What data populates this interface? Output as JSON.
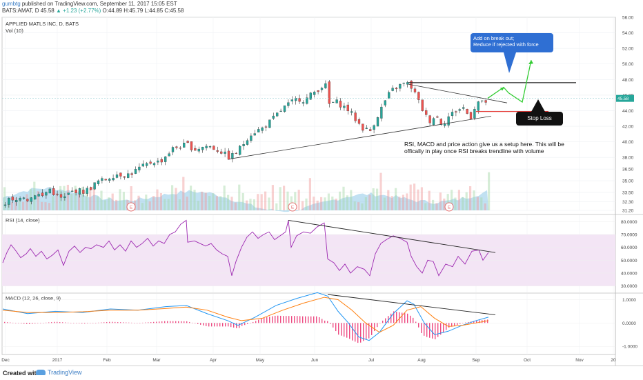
{
  "header": {
    "author": "gumbtg",
    "published": " published on TradingView.com, September 11, 2017 15:05 EST",
    "symbol": "BATS:AMAT, D",
    "last": "45.58",
    "change": "▲ +1.23 (+2.77%)",
    "ohlc": "O:44.89 H:45.79 L:44.85 C:45.58"
  },
  "main_panel": {
    "title": "APPLIED MATLS INC, D, BATS",
    "vol_label": "Vol (10)",
    "last_price_tag": "45.58"
  },
  "rsi_panel": {
    "title": "RSI (14, close)"
  },
  "macd_panel": {
    "title": "MACD (12, 26, close, 9)"
  },
  "annotations": {
    "callout_line1": "Add on break out;",
    "callout_line2": "Reduce if rejected with force",
    "stop_loss": "Stop Loss",
    "note": "RSI, MACD and price action give us a setup here. This will be offically in play once RSI breaks trendline with volume",
    "earnings_marker": "E"
  },
  "footer": {
    "created_with": "Created with",
    "brand": "TradingView"
  },
  "colors": {
    "up": "#26a69a",
    "down": "#ef5350",
    "volume": "#8ec9e8",
    "rsi_line": "#9c27b0",
    "rsi_band": "#f3e5f5",
    "macd": "#2196f3",
    "signal": "#ff7f0e",
    "hist": "#e91e63",
    "callout": "#2f6fd3",
    "support": "#e53935",
    "arrow": "#33cc33"
  },
  "chart_data": [
    {
      "type": "candlestick",
      "title": "APPLIED MATLS INC, D, BATS",
      "ylim": [
        31.2,
        56.0
      ],
      "y_ticks": [
        "56.00",
        "54.00",
        "52.00",
        "50.00",
        "48.00",
        "46.00",
        "44.00",
        "42.00",
        "40.00",
        "38.00",
        "36.50",
        "35.00",
        "33.50",
        "32.30",
        "31.20"
      ],
      "x_ticks": [
        "Dec",
        "2017",
        "Feb",
        "Mar",
        "Apr",
        "May",
        "Jun",
        "Jul",
        "Aug",
        "Sep",
        "Oct",
        "Nov",
        "20"
      ],
      "close_path": [
        [
          0,
          31.4
        ],
        [
          10,
          32.6
        ],
        [
          20,
          32.2
        ],
        [
          30,
          33.3
        ],
        [
          40,
          32.5
        ],
        [
          50,
          33.4
        ],
        [
          60,
          33.0
        ],
        [
          70,
          34.0
        ],
        [
          80,
          33.1
        ],
        [
          90,
          32.6
        ],
        [
          100,
          33.5
        ],
        [
          110,
          33.8
        ],
        [
          120,
          33.6
        ],
        [
          130,
          34.1
        ],
        [
          140,
          34.9
        ],
        [
          150,
          35.1
        ],
        [
          160,
          35.6
        ],
        [
          170,
          35.9
        ],
        [
          180,
          35.7
        ],
        [
          190,
          36.0
        ],
        [
          200,
          36.6
        ],
        [
          210,
          37.0
        ],
        [
          220,
          37.5
        ],
        [
          230,
          37.4
        ],
        [
          240,
          38.3
        ],
        [
          250,
          39.2
        ],
        [
          260,
          39.4
        ],
        [
          270,
          39.7
        ],
        [
          280,
          39.0
        ],
        [
          290,
          39.3
        ],
        [
          300,
          39.5
        ],
        [
          310,
          39.1
        ],
        [
          320,
          38.7
        ],
        [
          330,
          38.0
        ],
        [
          340,
          38.5
        ],
        [
          350,
          39.6
        ],
        [
          360,
          40.9
        ],
        [
          370,
          41.4
        ],
        [
          380,
          41.8
        ],
        [
          390,
          42.6
        ],
        [
          400,
          43.5
        ],
        [
          410,
          44.4
        ],
        [
          420,
          45.0
        ],
        [
          430,
          45.6
        ],
        [
          440,
          45.3
        ],
        [
          450,
          46.1
        ],
        [
          460,
          46.8
        ],
        [
          470,
          47.4
        ],
        [
          475,
          44.8
        ],
        [
          485,
          45.2
        ],
        [
          495,
          44.6
        ],
        [
          505,
          44.0
        ],
        [
          515,
          42.7
        ],
        [
          525,
          41.7
        ],
        [
          535,
          41.4
        ],
        [
          545,
          43.2
        ],
        [
          555,
          45.0
        ],
        [
          565,
          46.5
        ],
        [
          575,
          47.1
        ],
        [
          585,
          47.5
        ],
        [
          592,
          47.4
        ],
        [
          600,
          46.2
        ],
        [
          610,
          44.3
        ],
        [
          620,
          42.6
        ],
        [
          630,
          43.4
        ],
        [
          640,
          42.2
        ],
        [
          650,
          43.4
        ],
        [
          660,
          44.0
        ],
        [
          670,
          44.4
        ],
        [
          680,
          43.0
        ],
        [
          690,
          45.2
        ],
        [
          700,
          44.9
        ],
        [
          707,
          45.58
        ]
      ],
      "volume_bars": 130,
      "resistance_line": [
        [
          592,
          47.6
        ],
        [
          835,
          47.6
        ]
      ],
      "falling_trendline": [
        [
          592,
          47.4
        ],
        [
          735,
          45.0
        ]
      ],
      "rising_trendline": [
        [
          333,
          37.8
        ],
        [
          712,
          43.3
        ]
      ],
      "support_line": [
        [
          690,
          43.9
        ],
        [
          795,
          43.9
        ]
      ],
      "projection_arrow": [
        [
          707,
          45.6
        ],
        [
          730,
          47.0
        ],
        [
          737,
          46.3
        ],
        [
          757,
          45.1
        ],
        [
          770,
          50.5
        ]
      ],
      "earnings_x": [
        190,
        424,
        651
      ]
    },
    {
      "type": "line",
      "title": "RSI (14, close)",
      "ylim": [
        25,
        85
      ],
      "y_ticks": [
        "80.0000",
        "70.0000",
        "60.0000",
        "50.0000",
        "40.0000",
        "30.0000"
      ],
      "band": [
        30,
        70
      ],
      "values": [
        [
          4,
          48
        ],
        [
          10,
          56
        ],
        [
          16,
          62
        ],
        [
          22,
          58
        ],
        [
          30,
          52
        ],
        [
          38,
          55
        ],
        [
          44,
          59
        ],
        [
          52,
          53
        ],
        [
          60,
          57
        ],
        [
          68,
          51
        ],
        [
          76,
          54
        ],
        [
          84,
          58
        ],
        [
          92,
          46
        ],
        [
          100,
          57
        ],
        [
          108,
          61
        ],
        [
          116,
          56
        ],
        [
          124,
          60
        ],
        [
          132,
          59
        ],
        [
          140,
          62
        ],
        [
          150,
          60
        ],
        [
          158,
          65
        ],
        [
          166,
          58
        ],
        [
          174,
          62
        ],
        [
          182,
          57
        ],
        [
          190,
          65
        ],
        [
          198,
          60
        ],
        [
          206,
          63
        ],
        [
          214,
          67
        ],
        [
          222,
          61
        ],
        [
          230,
          65
        ],
        [
          238,
          63
        ],
        [
          246,
          70
        ],
        [
          254,
          72
        ],
        [
          262,
          78
        ],
        [
          270,
          81
        ],
        [
          272,
          64
        ],
        [
          282,
          65
        ],
        [
          290,
          63
        ],
        [
          298,
          61
        ],
        [
          306,
          63
        ],
        [
          314,
          58
        ],
        [
          322,
          55
        ],
        [
          330,
          53
        ],
        [
          336,
          38
        ],
        [
          342,
          49
        ],
        [
          350,
          60
        ],
        [
          358,
          68
        ],
        [
          366,
          72
        ],
        [
          374,
          67
        ],
        [
          382,
          70
        ],
        [
          390,
          72
        ],
        [
          398,
          66
        ],
        [
          406,
          69
        ],
        [
          414,
          72
        ],
        [
          418,
          81
        ],
        [
          422,
          60
        ],
        [
          430,
          69
        ],
        [
          440,
          72
        ],
        [
          450,
          71
        ],
        [
          460,
          76
        ],
        [
          470,
          79
        ],
        [
          475,
          51
        ],
        [
          484,
          48
        ],
        [
          492,
          42
        ],
        [
          500,
          47
        ],
        [
          508,
          40
        ],
        [
          518,
          45
        ],
        [
          528,
          43
        ],
        [
          536,
          38
        ],
        [
          544,
          55
        ],
        [
          552,
          63
        ],
        [
          560,
          66
        ],
        [
          570,
          69
        ],
        [
          580,
          67
        ],
        [
          590,
          64
        ],
        [
          596,
          53
        ],
        [
          604,
          45
        ],
        [
          612,
          40
        ],
        [
          620,
          50
        ],
        [
          628,
          49
        ],
        [
          636,
          38
        ],
        [
          646,
          47
        ],
        [
          656,
          45
        ],
        [
          664,
          53
        ],
        [
          674,
          47
        ],
        [
          684,
          57
        ],
        [
          694,
          58
        ],
        [
          700,
          50
        ],
        [
          708,
          56
        ]
      ],
      "trendline": [
        [
          418,
          81
        ],
        [
          718,
          56
        ]
      ]
    },
    {
      "type": "line",
      "title": "MACD (12, 26, close, 9)",
      "ylim": [
        -1.35,
        1.25
      ],
      "y_ticks": [
        "1.0000",
        "0.0000",
        "-1.0000"
      ],
      "macd": [
        [
          4,
          0.6
        ],
        [
          40,
          0.4
        ],
        [
          80,
          0.5
        ],
        [
          120,
          0.45
        ],
        [
          160,
          0.6
        ],
        [
          200,
          0.55
        ],
        [
          240,
          0.7
        ],
        [
          270,
          0.75
        ],
        [
          300,
          0.4
        ],
        [
          330,
          0.1
        ],
        [
          345,
          -0.1
        ],
        [
          370,
          0.25
        ],
        [
          400,
          0.75
        ],
        [
          430,
          1.05
        ],
        [
          460,
          1.3
        ],
        [
          475,
          1.15
        ],
        [
          490,
          0.5
        ],
        [
          505,
          0.0
        ],
        [
          520,
          -0.6
        ],
        [
          535,
          -0.75
        ],
        [
          550,
          -0.4
        ],
        [
          570,
          0.4
        ],
        [
          590,
          0.95
        ],
        [
          600,
          0.8
        ],
        [
          615,
          0.0
        ],
        [
          630,
          -0.5
        ],
        [
          650,
          -0.35
        ],
        [
          670,
          -0.1
        ],
        [
          690,
          0.1
        ],
        [
          708,
          0.25
        ]
      ],
      "signal": [
        [
          4,
          0.55
        ],
        [
          40,
          0.45
        ],
        [
          80,
          0.45
        ],
        [
          120,
          0.48
        ],
        [
          160,
          0.55
        ],
        [
          200,
          0.55
        ],
        [
          240,
          0.62
        ],
        [
          270,
          0.68
        ],
        [
          300,
          0.55
        ],
        [
          330,
          0.25
        ],
        [
          350,
          0.1
        ],
        [
          380,
          0.2
        ],
        [
          410,
          0.55
        ],
        [
          440,
          0.85
        ],
        [
          470,
          1.1
        ],
        [
          490,
          1.0
        ],
        [
          510,
          0.55
        ],
        [
          530,
          0.0
        ],
        [
          550,
          -0.4
        ],
        [
          570,
          -0.1
        ],
        [
          590,
          0.55
        ],
        [
          610,
          0.7
        ],
        [
          630,
          0.2
        ],
        [
          650,
          -0.15
        ],
        [
          670,
          -0.1
        ],
        [
          690,
          0.0
        ],
        [
          708,
          0.1
        ]
      ],
      "trendline": [
        [
          475,
          1.6
        ],
        [
          718,
          0.35
        ]
      ]
    }
  ]
}
